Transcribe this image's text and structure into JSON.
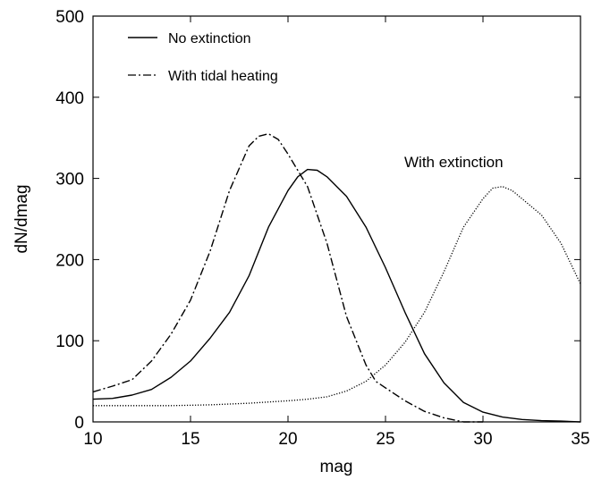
{
  "chart_data": {
    "type": "line",
    "xlabel": "mag",
    "ylabel": "dN/dmag",
    "xlim": [
      10,
      35
    ],
    "ylim": [
      0,
      500
    ],
    "xticks": [
      10,
      15,
      20,
      25,
      30,
      35
    ],
    "yticks": [
      0,
      100,
      200,
      300,
      400,
      500
    ],
    "grid": false,
    "legend_position": "top-left",
    "legend": [
      {
        "label": "No extinction",
        "series": "no_extinction",
        "dash": "solid"
      },
      {
        "label": "With tidal heating",
        "series": "tidal_heating",
        "dash": "dashdot"
      }
    ],
    "annotations": [
      {
        "text": "With extinction",
        "x": 26.4,
        "y": 318,
        "series": "extinction"
      }
    ],
    "series": [
      {
        "name": "No extinction",
        "key": "no_extinction",
        "dash": "solid",
        "x": [
          10,
          11,
          12,
          13,
          14,
          15,
          16,
          17,
          18,
          19,
          20,
          20.5,
          21,
          21.5,
          22,
          23,
          24,
          25,
          26,
          27,
          28,
          29,
          30,
          31,
          32,
          33,
          34,
          35
        ],
        "y": [
          28,
          29,
          33,
          40,
          55,
          75,
          103,
          135,
          180,
          240,
          285,
          302,
          311,
          310,
          302,
          278,
          240,
          190,
          135,
          84,
          48,
          24,
          12,
          6,
          3,
          1.5,
          1,
          0
        ]
      },
      {
        "name": "With tidal heating",
        "key": "tidal_heating",
        "dash": "dashdot",
        "x": [
          10,
          11,
          12,
          13,
          14,
          15,
          16,
          17,
          18,
          18.5,
          19,
          19.5,
          20,
          21,
          22,
          23,
          24,
          24.5,
          25,
          26,
          27,
          28,
          29,
          30
        ],
        "y": [
          37,
          44,
          52,
          75,
          108,
          150,
          210,
          285,
          340,
          352,
          355,
          348,
          330,
          290,
          220,
          130,
          70,
          50,
          42,
          26,
          13,
          5,
          0,
          0
        ]
      },
      {
        "name": "With extinction",
        "key": "extinction",
        "dash": "dotted",
        "x": [
          10,
          12,
          14,
          16,
          18,
          20,
          21,
          22,
          23,
          24,
          25,
          26,
          27,
          28,
          29,
          30,
          30.5,
          31,
          31.5,
          32,
          33,
          34,
          35
        ],
        "y": [
          20,
          20,
          20,
          21,
          23,
          26,
          28,
          31,
          38,
          50,
          70,
          98,
          135,
          185,
          240,
          275,
          288,
          290,
          285,
          275,
          255,
          220,
          170
        ]
      }
    ]
  }
}
